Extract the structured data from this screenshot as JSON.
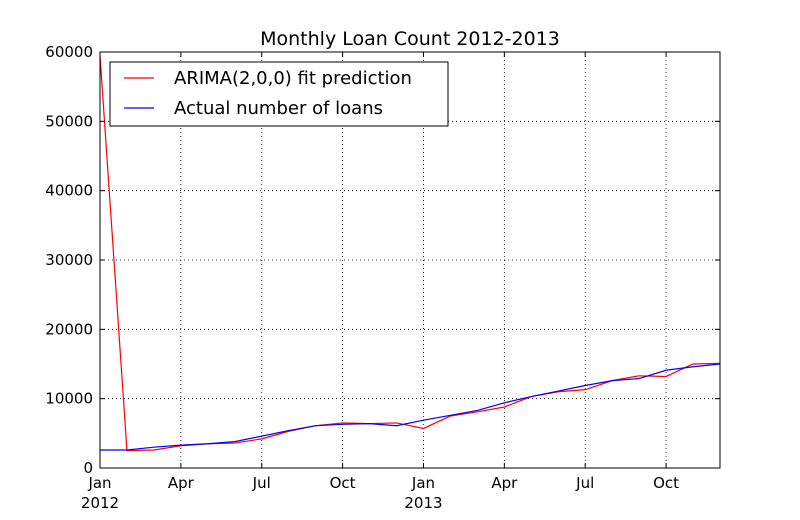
{
  "chart_data": {
    "type": "line",
    "title": "Monthly Loan Count 2012-2013",
    "xlabel": "",
    "ylabel": "",
    "x": [
      "2012-01",
      "2012-02",
      "2012-03",
      "2012-04",
      "2012-05",
      "2012-06",
      "2012-07",
      "2012-08",
      "2012-09",
      "2012-10",
      "2012-11",
      "2012-12",
      "2013-01",
      "2013-02",
      "2013-03",
      "2013-04",
      "2013-05",
      "2013-06",
      "2013-07",
      "2013-08",
      "2013-09",
      "2013-10",
      "2013-11",
      "2013-12"
    ],
    "x_ticks": [
      {
        "x": "2012-01",
        "label": "Jan",
        "sublabel": "2012"
      },
      {
        "x": "2012-04",
        "label": "Apr",
        "sublabel": ""
      },
      {
        "x": "2012-07",
        "label": "Jul",
        "sublabel": ""
      },
      {
        "x": "2012-10",
        "label": "Oct",
        "sublabel": ""
      },
      {
        "x": "2013-01",
        "label": "Jan",
        "sublabel": "2013"
      },
      {
        "x": "2013-04",
        "label": "Apr",
        "sublabel": ""
      },
      {
        "x": "2013-07",
        "label": "Jul",
        "sublabel": ""
      },
      {
        "x": "2013-10",
        "label": "Oct",
        "sublabel": ""
      }
    ],
    "y_ticks": [
      0,
      10000,
      20000,
      30000,
      40000,
      50000,
      60000
    ],
    "ylim": [
      0,
      60000
    ],
    "xlim": [
      "2012-01",
      "2013-12"
    ],
    "grid": true,
    "legend_position": "top-left",
    "series": [
      {
        "name": "ARIMA(2,0,0) fit prediction",
        "color": "#ff0000",
        "values": [
          59500,
          2500,
          2600,
          3200,
          3500,
          3600,
          4200,
          5300,
          6100,
          6500,
          6400,
          6500,
          5700,
          7500,
          8100,
          8800,
          10300,
          11000,
          11300,
          12600,
          13300,
          13200,
          15000,
          15100
        ]
      },
      {
        "name": "Actual number of loans",
        "color": "#0000ff",
        "values": [
          2600,
          2600,
          3000,
          3300,
          3500,
          3800,
          4600,
          5400,
          6100,
          6300,
          6400,
          6100,
          6900,
          7600,
          8300,
          9400,
          10300,
          11100,
          11900,
          12600,
          12900,
          14100,
          14600,
          15000
        ]
      }
    ]
  }
}
